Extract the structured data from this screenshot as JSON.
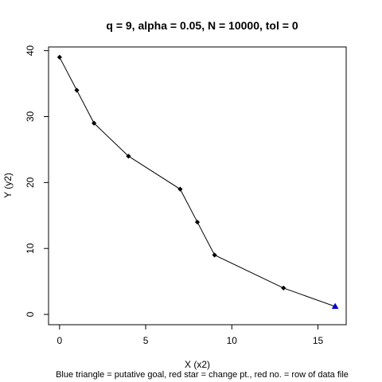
{
  "chart_data": {
    "type": "line",
    "title": "q = 9, alpha = 0.05, N = 10000, tol = 0",
    "xlabel": "X (x2)",
    "ylabel": "Y (y2)",
    "subtitle": "Blue triangle = putative goal, red star = change pt., red no. = row of data file",
    "xlim": [
      -0.64,
      16.64
    ],
    "ylim": [
      -1.56,
      40.56
    ],
    "x_ticks": [
      0,
      5,
      10,
      15
    ],
    "y_ticks": [
      0,
      10,
      20,
      30,
      40
    ],
    "series": [
      {
        "x": [
          0,
          1,
          2,
          4,
          7,
          8,
          9,
          13,
          16
        ],
        "y": [
          39,
          34,
          29,
          24,
          19,
          14,
          9,
          4,
          1.2
        ]
      }
    ],
    "goal": {
      "x": 16,
      "y": 1.2,
      "marker": "triangle",
      "color": "#0000cc"
    },
    "colors": {
      "line": "#000000",
      "point": "#000000",
      "goal": "#0000cc"
    },
    "grid": false
  }
}
